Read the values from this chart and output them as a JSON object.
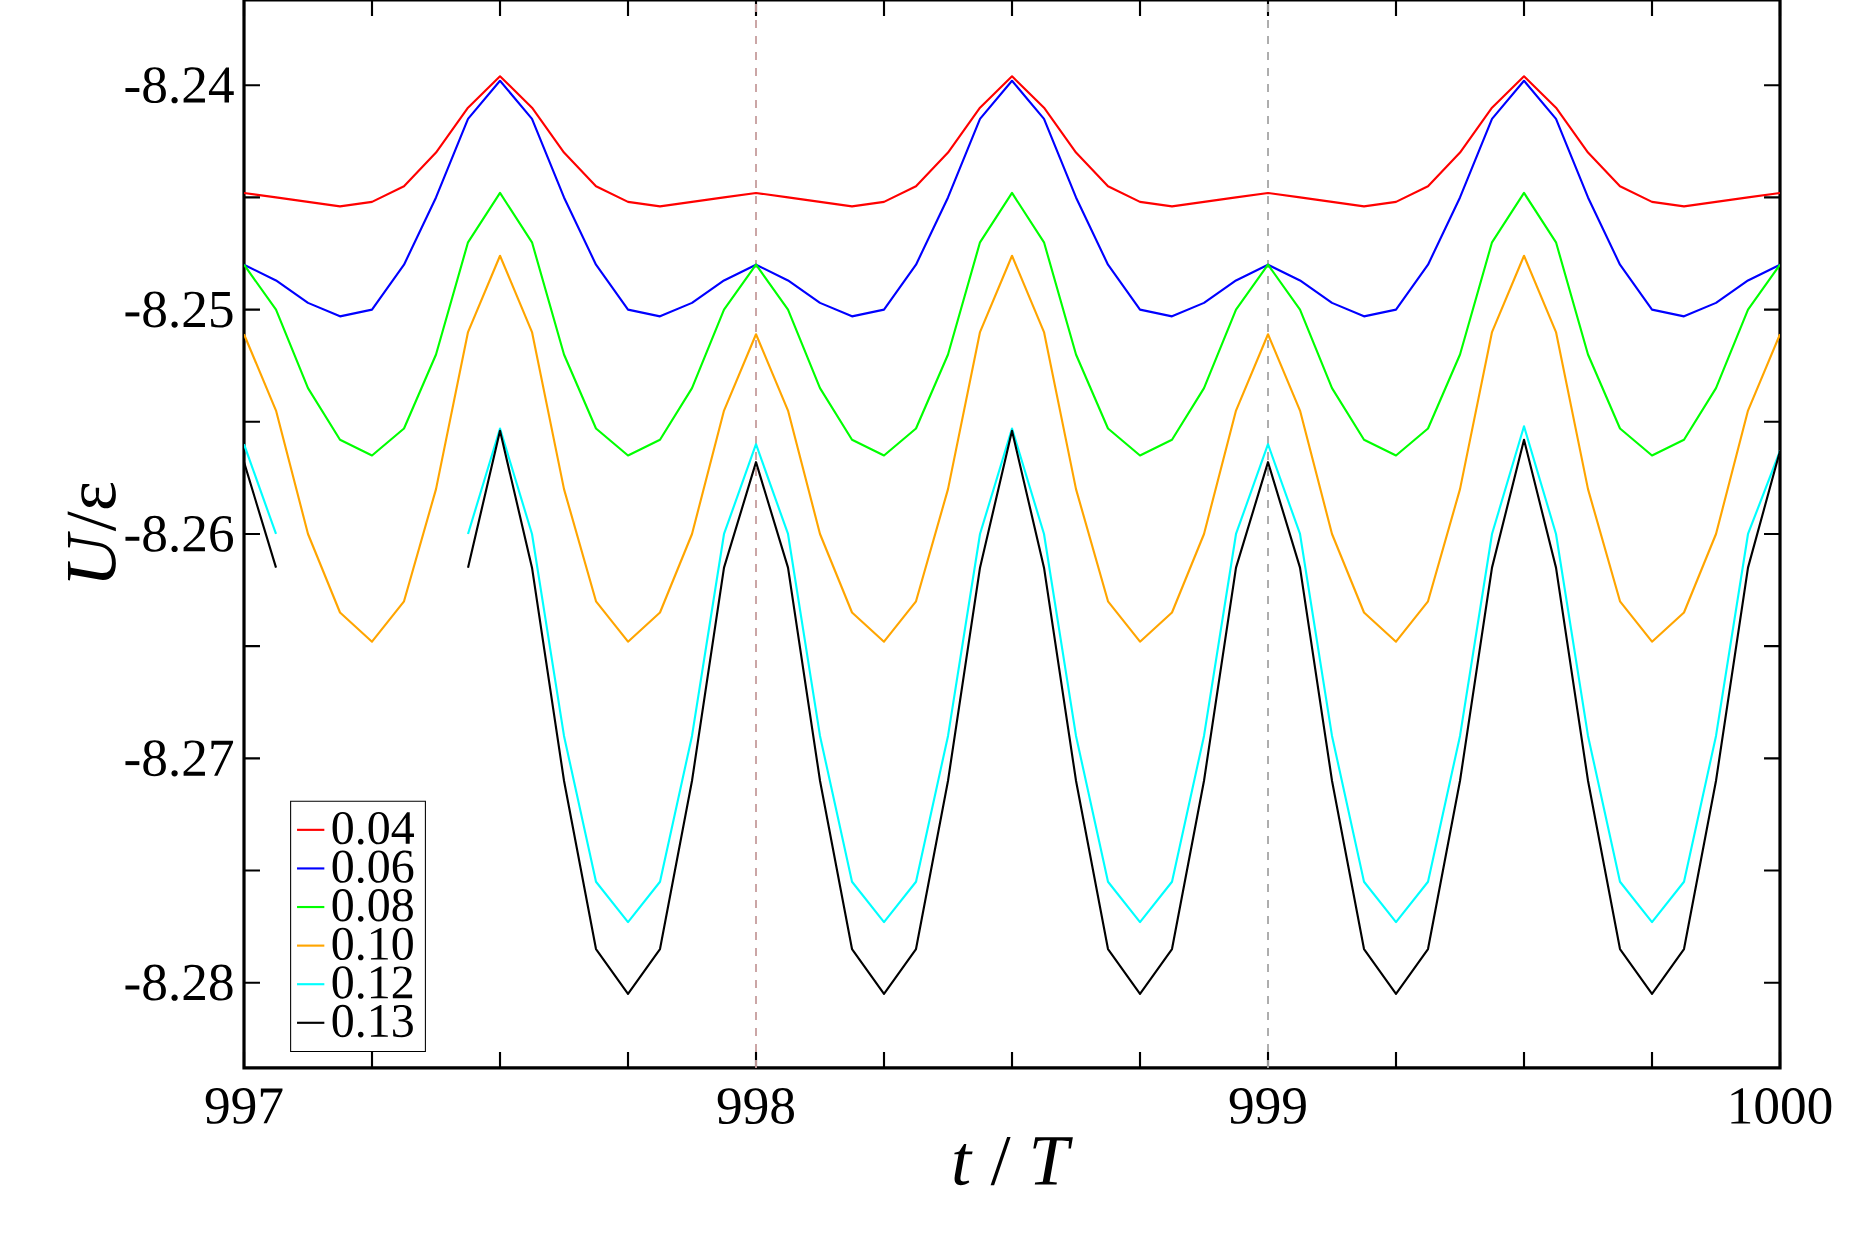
{
  "chart_data": {
    "type": "line",
    "xlabel": "*t* / *T*",
    "ylabel": "*U*/ε",
    "xlim": [
      997,
      1000
    ],
    "ylim": [
      -8.2838,
      -8.2362
    ],
    "xticks": [
      997,
      {
        "value": 997.25,
        "label": null
      },
      {
        "value": 997.5,
        "label": null
      },
      {
        "value": 997.75,
        "label": null
      },
      998,
      {
        "value": 998.25,
        "label": null
      },
      {
        "value": 998.5,
        "label": null
      },
      {
        "value": 998.75,
        "label": null
      },
      999,
      {
        "value": 999.25,
        "label": null
      },
      {
        "value": 999.5,
        "label": null
      },
      {
        "value": 999.75,
        "label": null
      },
      1000
    ],
    "yticks": [
      -8.28,
      {
        "value": -8.275,
        "label": null
      },
      -8.27,
      {
        "value": -8.265,
        "label": null
      },
      -8.26,
      {
        "value": -8.255,
        "label": null
      },
      -8.25,
      {
        "value": -8.245,
        "label": null
      },
      -8.24
    ],
    "legend": "bottom left",
    "grid": false,
    "line_style": "solid",
    "ref_lines": [
      {
        "axis": "x",
        "value": 998,
        "color": "#c8a0a0",
        "line_style": "dashed"
      },
      {
        "axis": "x",
        "value": 999,
        "color": "#a8a8a8",
        "line_style": "dashed"
      }
    ],
    "x": [
      997,
      997.0625,
      997.125,
      997.1875,
      997.25,
      997.3125,
      997.375,
      997.4375,
      997.5,
      997.5625,
      997.625,
      997.6875,
      997.75,
      997.8125,
      997.875,
      997.9375,
      998,
      998.0625,
      998.125,
      998.1875,
      998.25,
      998.3125,
      998.375,
      998.4375,
      998.5,
      998.5625,
      998.625,
      998.6875,
      998.75,
      998.8125,
      998.875,
      998.9375,
      999,
      999.0625,
      999.125,
      999.1875,
      999.25,
      999.3125,
      999.375,
      999.4375,
      999.5,
      999.5625,
      999.625,
      999.6875,
      999.75,
      999.8125,
      999.875,
      999.9375,
      1000
    ],
    "series": [
      {
        "name": "0.04",
        "color": "#ff0000",
        "values": [
          -8.2448,
          -8.245,
          -8.2452,
          -8.2454,
          -8.2452,
          -8.2445,
          -8.243,
          -8.241,
          -8.2396,
          -8.241,
          -8.243,
          -8.2445,
          -8.2452,
          -8.2454,
          -8.2452,
          -8.245,
          -8.2448,
          -8.245,
          -8.2452,
          -8.2454,
          -8.2452,
          -8.2445,
          -8.243,
          -8.241,
          -8.2396,
          -8.241,
          -8.243,
          -8.2445,
          -8.2452,
          -8.2454,
          -8.2452,
          -8.245,
          -8.2448,
          -8.245,
          -8.2452,
          -8.2454,
          -8.2452,
          -8.2445,
          -8.243,
          -8.241,
          -8.2396,
          -8.241,
          -8.243,
          -8.2445,
          -8.2452,
          -8.2454,
          -8.2452,
          -8.245,
          -8.2448
        ]
      },
      {
        "name": "0.06",
        "color": "#0000ff",
        "values": [
          -8.248,
          -8.2487,
          -8.2497,
          -8.2503,
          -8.25,
          -8.248,
          -8.245,
          -8.2415,
          -8.2398,
          -8.2415,
          -8.245,
          -8.248,
          -8.25,
          -8.2503,
          -8.2497,
          -8.2487,
          -8.248,
          -8.2487,
          -8.2497,
          -8.2503,
          -8.25,
          -8.248,
          -8.245,
          -8.2415,
          -8.2398,
          -8.2415,
          -8.245,
          -8.248,
          -8.25,
          -8.2503,
          -8.2497,
          -8.2487,
          -8.248,
          -8.2487,
          -8.2497,
          -8.2503,
          -8.25,
          -8.248,
          -8.245,
          -8.2415,
          -8.2398,
          -8.2415,
          -8.245,
          -8.248,
          -8.25,
          -8.2503,
          -8.2497,
          -8.2487,
          -8.248
        ]
      },
      {
        "name": "0.08",
        "color": "#00ff00",
        "values": [
          -8.248,
          -8.25,
          -8.2535,
          -8.2558,
          -8.2565,
          -8.2553,
          -8.252,
          -8.247,
          -8.2448,
          -8.247,
          -8.252,
          -8.2553,
          -8.2565,
          -8.2558,
          -8.2535,
          -8.25,
          -8.248,
          -8.25,
          -8.2535,
          -8.2558,
          -8.2565,
          -8.2553,
          -8.252,
          -8.247,
          -8.2448,
          -8.247,
          -8.252,
          -8.2553,
          -8.2565,
          -8.2558,
          -8.2535,
          -8.25,
          -8.248,
          -8.25,
          -8.2535,
          -8.2558,
          -8.2565,
          -8.2553,
          -8.252,
          -8.247,
          -8.2448,
          -8.247,
          -8.252,
          -8.2553,
          -8.2565,
          -8.2558,
          -8.2535,
          -8.25,
          -8.248
        ]
      },
      {
        "name": "0.10",
        "color": "#ffa500",
        "values": [
          -8.2511,
          -8.2545,
          -8.26,
          -8.2635,
          -8.2648,
          -8.263,
          -8.258,
          -8.251,
          -8.2476,
          -8.251,
          -8.258,
          -8.263,
          -8.2648,
          -8.2635,
          -8.26,
          -8.2545,
          -8.2511,
          -8.2545,
          -8.26,
          -8.2635,
          -8.2648,
          -8.263,
          -8.258,
          -8.251,
          -8.2476,
          -8.251,
          -8.258,
          -8.263,
          -8.2648,
          -8.2635,
          -8.26,
          -8.2545,
          -8.2511,
          -8.2545,
          -8.26,
          -8.2635,
          -8.2648,
          -8.263,
          -8.258,
          -8.251,
          -8.2476,
          -8.251,
          -8.258,
          -8.263,
          -8.2648,
          -8.2635,
          -8.26,
          -8.2545,
          -8.2511
        ]
      },
      {
        "name": "0.12",
        "color": "#00ffff",
        "values": [
          -8.256,
          -8.26,
          null,
          null,
          null,
          null,
          null,
          -8.26,
          -8.2553,
          -8.26,
          -8.269,
          -8.2755,
          -8.2773,
          -8.2755,
          -8.269,
          -8.26,
          -8.256,
          -8.26,
          -8.269,
          -8.2755,
          -8.2773,
          -8.2755,
          -8.269,
          -8.26,
          -8.2553,
          -8.26,
          -8.269,
          -8.2755,
          -8.2773,
          -8.2755,
          -8.269,
          -8.26,
          -8.256,
          -8.26,
          -8.269,
          -8.2755,
          -8.2773,
          -8.2755,
          -8.269,
          -8.26,
          -8.2552,
          -8.26,
          -8.269,
          -8.2755,
          -8.2773,
          -8.2755,
          -8.269,
          -8.26,
          -8.2563
        ]
      },
      {
        "name": "0.13",
        "color": "#000000",
        "values": [
          -8.2568,
          -8.2615,
          null,
          null,
          null,
          null,
          null,
          -8.2615,
          -8.2554,
          -8.2615,
          -8.271,
          -8.2785,
          -8.2805,
          -8.2785,
          -8.271,
          -8.2615,
          -8.2568,
          -8.2615,
          -8.271,
          -8.2785,
          -8.2805,
          -8.2785,
          -8.271,
          -8.2615,
          -8.2554,
          -8.2615,
          -8.271,
          -8.2785,
          -8.2805,
          -8.2785,
          -8.271,
          -8.2615,
          -8.2568,
          -8.2615,
          -8.271,
          -8.2785,
          -8.2805,
          -8.2785,
          -8.271,
          -8.2615,
          -8.2558,
          -8.2615,
          -8.271,
          -8.2785,
          -8.2805,
          -8.2785,
          -8.271,
          -8.2615,
          -8.2563
        ]
      }
    ]
  }
}
